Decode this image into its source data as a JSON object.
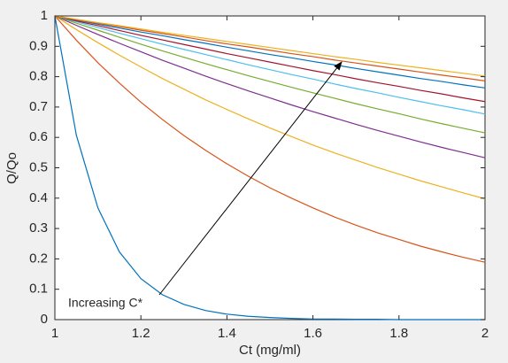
{
  "chart_data": {
    "type": "line",
    "xlabel": "Ct (mg/ml)",
    "ylabel": "Q/Qo",
    "annotation": "Increasing C*",
    "x": [
      1,
      1.05,
      1.1,
      1.15,
      1.2,
      1.25,
      1.3,
      1.35,
      1.4,
      1.45,
      1.5,
      1.55,
      1.6,
      1.65,
      1.7,
      1.75,
      1.8,
      1.85,
      1.9,
      1.95,
      2
    ],
    "xlim": [
      1,
      2
    ],
    "xticks": [
      1,
      1.2,
      1.4,
      1.6,
      1.8,
      2
    ],
    "ylim": [
      0,
      1
    ],
    "yticks": [
      0,
      0.1,
      0.2,
      0.3,
      0.4,
      0.5,
      0.6,
      0.7,
      0.8,
      0.9,
      1
    ],
    "grid": false,
    "series": [
      {
        "color": "#0072bd",
        "values": [
          1,
          0.607,
          0.368,
          0.223,
          0.135,
          0.082,
          0.05,
          0.03,
          0.018,
          0.011,
          0.007,
          0.004,
          0.002,
          0.002,
          0.001,
          0.001,
          0,
          0,
          0,
          0,
          0
        ]
      },
      {
        "color": "#d95319",
        "values": [
          1,
          0.92,
          0.846,
          0.779,
          0.716,
          0.659,
          0.606,
          0.558,
          0.513,
          0.472,
          0.434,
          0.4,
          0.368,
          0.338,
          0.311,
          0.286,
          0.264,
          0.242,
          0.223,
          0.205,
          0.189
        ]
      },
      {
        "color": "#edb120",
        "values": [
          1,
          0.955,
          0.912,
          0.871,
          0.832,
          0.794,
          0.759,
          0.724,
          0.692,
          0.661,
          0.631,
          0.603,
          0.575,
          0.549,
          0.525,
          0.501,
          0.479,
          0.457,
          0.437,
          0.417,
          0.398
        ]
      },
      {
        "color": "#7e2f8e",
        "values": [
          1,
          0.969,
          0.939,
          0.91,
          0.882,
          0.854,
          0.828,
          0.802,
          0.777,
          0.753,
          0.73,
          0.707,
          0.685,
          0.664,
          0.643,
          0.623,
          0.604,
          0.585,
          0.567,
          0.55,
          0.533
        ]
      },
      {
        "color": "#77ac30",
        "values": [
          1,
          0.976,
          0.953,
          0.93,
          0.907,
          0.885,
          0.864,
          0.843,
          0.823,
          0.803,
          0.784,
          0.765,
          0.747,
          0.729,
          0.711,
          0.694,
          0.678,
          0.661,
          0.645,
          0.63,
          0.615
        ]
      },
      {
        "color": "#4dbeee",
        "values": [
          1,
          0.981,
          0.962,
          0.943,
          0.925,
          0.907,
          0.89,
          0.873,
          0.856,
          0.839,
          0.823,
          0.807,
          0.792,
          0.776,
          0.761,
          0.747,
          0.732,
          0.718,
          0.704,
          0.691,
          0.677
        ]
      },
      {
        "color": "#a2142f",
        "values": [
          1,
          0.984,
          0.968,
          0.952,
          0.936,
          0.921,
          0.906,
          0.891,
          0.876,
          0.862,
          0.848,
          0.834,
          0.82,
          0.807,
          0.793,
          0.78,
          0.768,
          0.755,
          0.743,
          0.73,
          0.718
        ]
      },
      {
        "color": "#0072bd",
        "values": [
          1,
          0.987,
          0.973,
          0.96,
          0.947,
          0.935,
          0.922,
          0.91,
          0.897,
          0.885,
          0.873,
          0.862,
          0.85,
          0.839,
          0.827,
          0.816,
          0.805,
          0.794,
          0.784,
          0.773,
          0.763
        ]
      },
      {
        "color": "#d95319",
        "values": [
          1,
          0.988,
          0.976,
          0.965,
          0.953,
          0.942,
          0.931,
          0.919,
          0.908,
          0.898,
          0.887,
          0.876,
          0.866,
          0.855,
          0.845,
          0.835,
          0.825,
          0.815,
          0.805,
          0.796,
          0.786
        ]
      },
      {
        "color": "#edb120",
        "values": [
          1,
          0.989,
          0.978,
          0.968,
          0.957,
          0.946,
          0.936,
          0.926,
          0.916,
          0.906,
          0.896,
          0.886,
          0.876,
          0.866,
          0.857,
          0.847,
          0.838,
          0.829,
          0.82,
          0.811,
          0.802
        ]
      }
    ]
  }
}
